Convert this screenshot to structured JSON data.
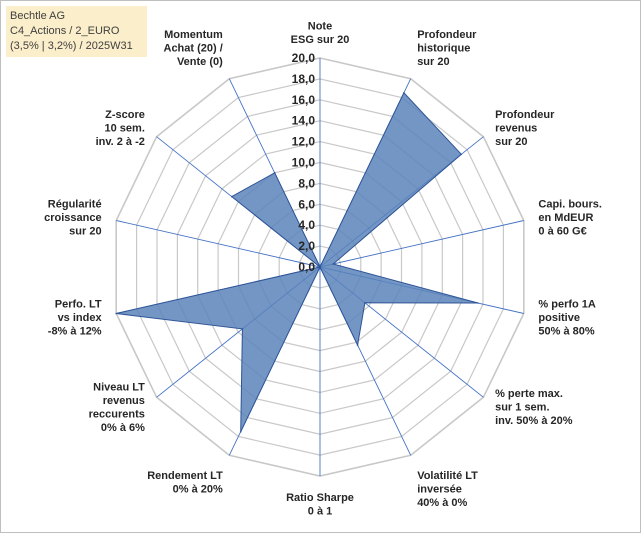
{
  "info": {
    "line1": "Bechtle AG",
    "line2": "C4_Actions / 2_EURO",
    "line3": "(3,5% | 3,2%) / 2025W31"
  },
  "colors": {
    "fill": "#5b84bb",
    "stroke": "#2f5597",
    "grid": "#c8c8c8",
    "spoke": "#4472c4",
    "info_bg": "#fbeecb"
  },
  "chart_data": {
    "type": "radar",
    "rmax": 20,
    "ticks": [
      "0,0",
      "2,0",
      "4,0",
      "6,0",
      "8,0",
      "10,0",
      "12,0",
      "14,0",
      "16,0",
      "18,0",
      "20,0"
    ],
    "axes": [
      [
        "Note",
        "ESG sur 20"
      ],
      [
        "Profondeur",
        "historique",
        "sur 20"
      ],
      [
        "Profondeur",
        "revenus",
        "sur 20"
      ],
      [
        "Capi. bours.",
        "en MdEUR",
        "0 à 60 G€"
      ],
      [
        "% perfo 1A",
        "positive",
        "50% à 80%"
      ],
      [
        "% perte max.",
        "sur 1 sem.",
        "inv. 50% à 20%"
      ],
      [
        "Volatilité LT",
        "inversée",
        "40% à 0%"
      ],
      [
        "Ratio Sharpe",
        "0 à 1"
      ],
      [
        "Rendement LT",
        "0% à 20%"
      ],
      [
        "Niveau LT",
        "revenus",
        "reccurents",
        "0% à 6%"
      ],
      [
        "Perfo. LT",
        "vs index",
        "-8% à 12%"
      ],
      [
        "Régularité",
        "croissance",
        "sur 20"
      ],
      [
        "Z-score",
        "10 sem.",
        "inv. 2 à -2"
      ],
      [
        "Momentum",
        "Achat (20) /",
        "Vente (0)"
      ]
    ],
    "values": [
      0,
      18.5,
      17.3,
      1.3,
      15.5,
      5.5,
      8.3,
      0,
      17.5,
      9.5,
      20,
      0,
      10.8,
      10
    ]
  }
}
